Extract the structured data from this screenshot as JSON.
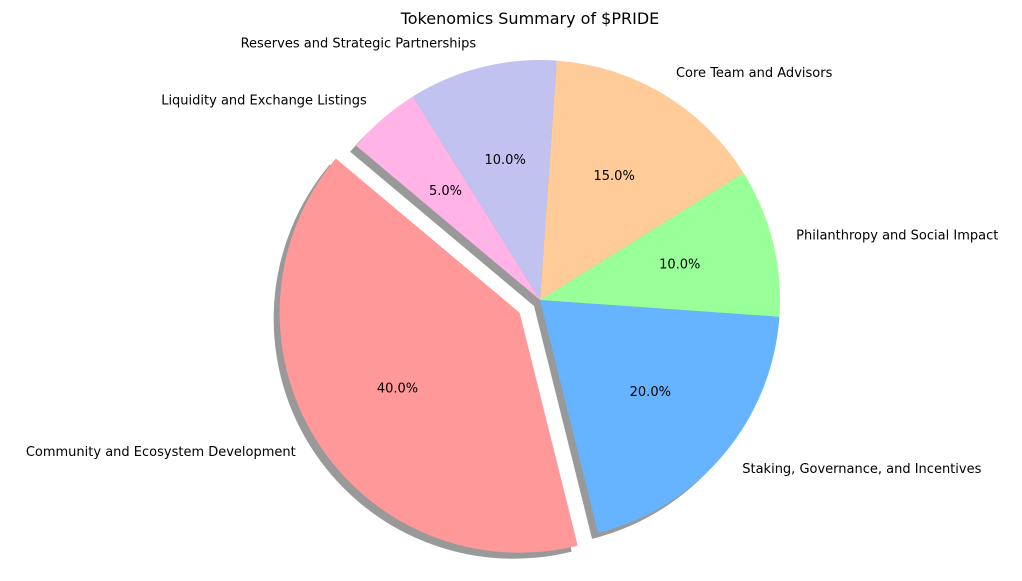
{
  "chart_data": {
    "type": "pie",
    "title": "Tokenomics Summary of $PRIDE",
    "start_angle_deg": 140,
    "direction": "counterclockwise",
    "shadow": true,
    "slices": [
      {
        "label": "Community and Ecosystem Development",
        "value": 40,
        "pct_label": "40.0%",
        "color": "#ff9999",
        "explode": 0.1
      },
      {
        "label": "Staking, Governance, and Incentives",
        "value": 20,
        "pct_label": "20.0%",
        "color": "#66b3ff",
        "explode": 0
      },
      {
        "label": "Philanthropy and Social Impact",
        "value": 10,
        "pct_label": "10.0%",
        "color": "#99ff99",
        "explode": 0
      },
      {
        "label": "Core Team and Advisors",
        "value": 15,
        "pct_label": "15.0%",
        "color": "#ffcc99",
        "explode": 0
      },
      {
        "label": "Reserves and Strategic Partnerships",
        "value": 10,
        "pct_label": "10.0%",
        "color": "#c2c2f0",
        "explode": 0
      },
      {
        "label": "Liquidity and Exchange Listings",
        "value": 5,
        "pct_label": "5.0%",
        "color": "#ffb3e6",
        "explode": 0
      }
    ]
  }
}
